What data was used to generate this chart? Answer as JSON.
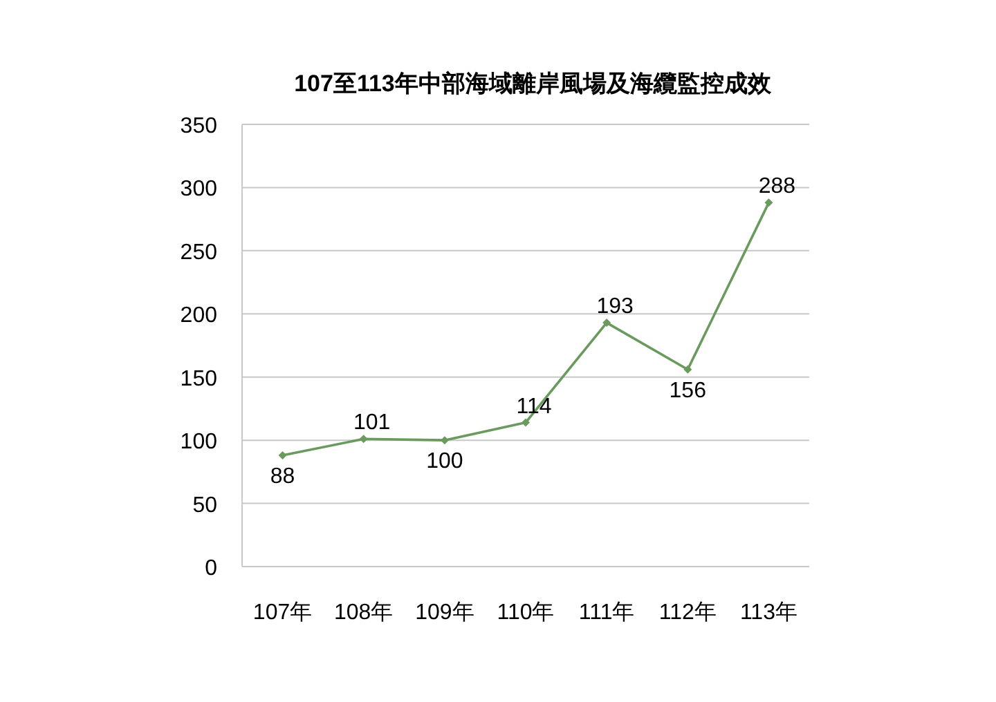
{
  "chart_data": {
    "type": "line",
    "title": "107至113年中部海域離岸風場及海纜監控成效",
    "categories": [
      "107年",
      "108年",
      "109年",
      "110年",
      "111年",
      "112年",
      "113年"
    ],
    "series": [
      {
        "color": "#6b9a5e",
        "values": [
          88,
          101,
          100,
          114,
          193,
          156,
          288
        ]
      }
    ],
    "ylim": [
      0,
      350
    ],
    "yticks": [
      0,
      50,
      100,
      150,
      200,
      250,
      300,
      350
    ],
    "grid": "y",
    "data_labels": true,
    "marker": "diamond",
    "line_style": "solid"
  }
}
